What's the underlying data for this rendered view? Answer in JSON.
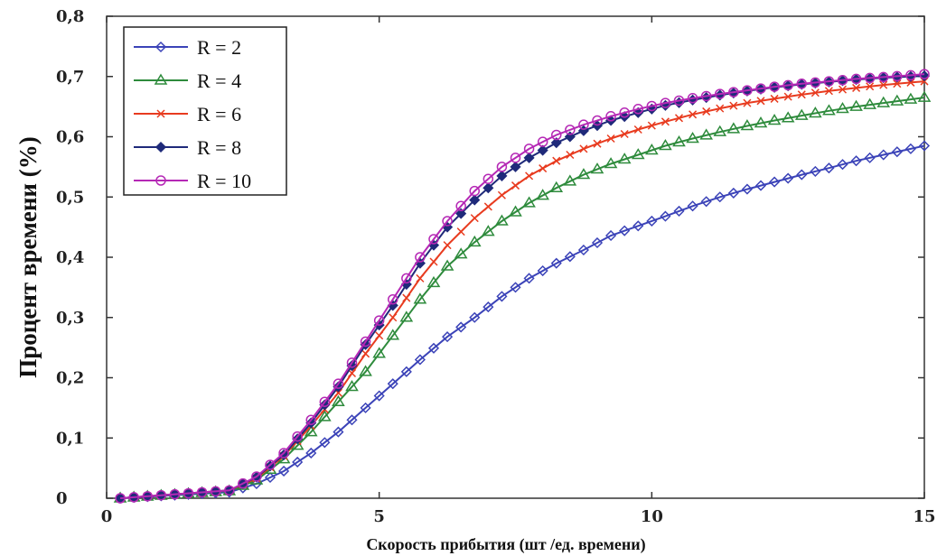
{
  "chart_data": {
    "type": "line",
    "title": "",
    "xlabel": "Скорость прибытия (шт /ед. времени)",
    "ylabel": "Процент времени (%)",
    "xlim": [
      0,
      15
    ],
    "ylim": [
      0,
      0.8
    ],
    "xticks": [
      0,
      5,
      10,
      15
    ],
    "xtick_labels": [
      "0",
      "5",
      "10",
      "15"
    ],
    "yticks": [
      0,
      0.1,
      0.2,
      0.3,
      0.4,
      0.5,
      0.6,
      0.7,
      0.8
    ],
    "ytick_labels": [
      "0",
      "0,1",
      "0,2",
      "0,3",
      "0,4",
      "0,5",
      "0,6",
      "0,7",
      "0,8"
    ],
    "grid": false,
    "legend_position": "top-left",
    "x": [
      0.25,
      2.25,
      2.75,
      3.25,
      3.75,
      4.25,
      4.75,
      5.25,
      5.75,
      6.25,
      6.75,
      7.25,
      7.75,
      8.25,
      8.75,
      9.25,
      9.75,
      10.25,
      10.75,
      11.25,
      11.75,
      12.25,
      12.75,
      13.25,
      13.75,
      14.25,
      14.75,
      15.0
    ],
    "series": [
      {
        "name": "R = 2",
        "color": "#3b43b8",
        "marker": "diamond-open",
        "values": [
          0.0,
          0.01,
          0.024,
          0.045,
          0.075,
          0.11,
          0.15,
          0.19,
          0.23,
          0.268,
          0.3,
          0.335,
          0.365,
          0.39,
          0.412,
          0.436,
          0.452,
          0.468,
          0.485,
          0.5,
          0.513,
          0.525,
          0.537,
          0.548,
          0.56,
          0.57,
          0.58,
          0.585
        ]
      },
      {
        "name": "R = 4",
        "color": "#2e8b3c",
        "marker": "triangle-open",
        "values": [
          0.0,
          0.012,
          0.03,
          0.065,
          0.11,
          0.16,
          0.21,
          0.27,
          0.33,
          0.385,
          0.425,
          0.46,
          0.49,
          0.515,
          0.537,
          0.555,
          0.57,
          0.585,
          0.597,
          0.608,
          0.618,
          0.627,
          0.635,
          0.643,
          0.65,
          0.656,
          0.662,
          0.665
        ]
      },
      {
        "name": "R = 6",
        "color": "#e83b1f",
        "marker": "x",
        "values": [
          0.0,
          0.013,
          0.033,
          0.07,
          0.12,
          0.175,
          0.24,
          0.3,
          0.365,
          0.42,
          0.465,
          0.503,
          0.535,
          0.56,
          0.58,
          0.597,
          0.612,
          0.625,
          0.637,
          0.647,
          0.656,
          0.663,
          0.67,
          0.676,
          0.681,
          0.686,
          0.69,
          0.692
        ]
      },
      {
        "name": "R = 8",
        "color": "#1f2a7a",
        "marker": "diamond-filled",
        "values": [
          0.0,
          0.013,
          0.035,
          0.072,
          0.125,
          0.185,
          0.255,
          0.32,
          0.39,
          0.45,
          0.495,
          0.535,
          0.565,
          0.59,
          0.61,
          0.627,
          0.64,
          0.652,
          0.661,
          0.669,
          0.676,
          0.682,
          0.687,
          0.691,
          0.695,
          0.698,
          0.7,
          0.701
        ]
      },
      {
        "name": "R = 10",
        "color": "#b528b5",
        "marker": "circle-open",
        "values": [
          0.0,
          0.013,
          0.036,
          0.075,
          0.13,
          0.19,
          0.26,
          0.33,
          0.4,
          0.46,
          0.51,
          0.55,
          0.58,
          0.603,
          0.62,
          0.634,
          0.646,
          0.656,
          0.664,
          0.671,
          0.677,
          0.683,
          0.688,
          0.692,
          0.696,
          0.699,
          0.702,
          0.704
        ]
      }
    ]
  }
}
